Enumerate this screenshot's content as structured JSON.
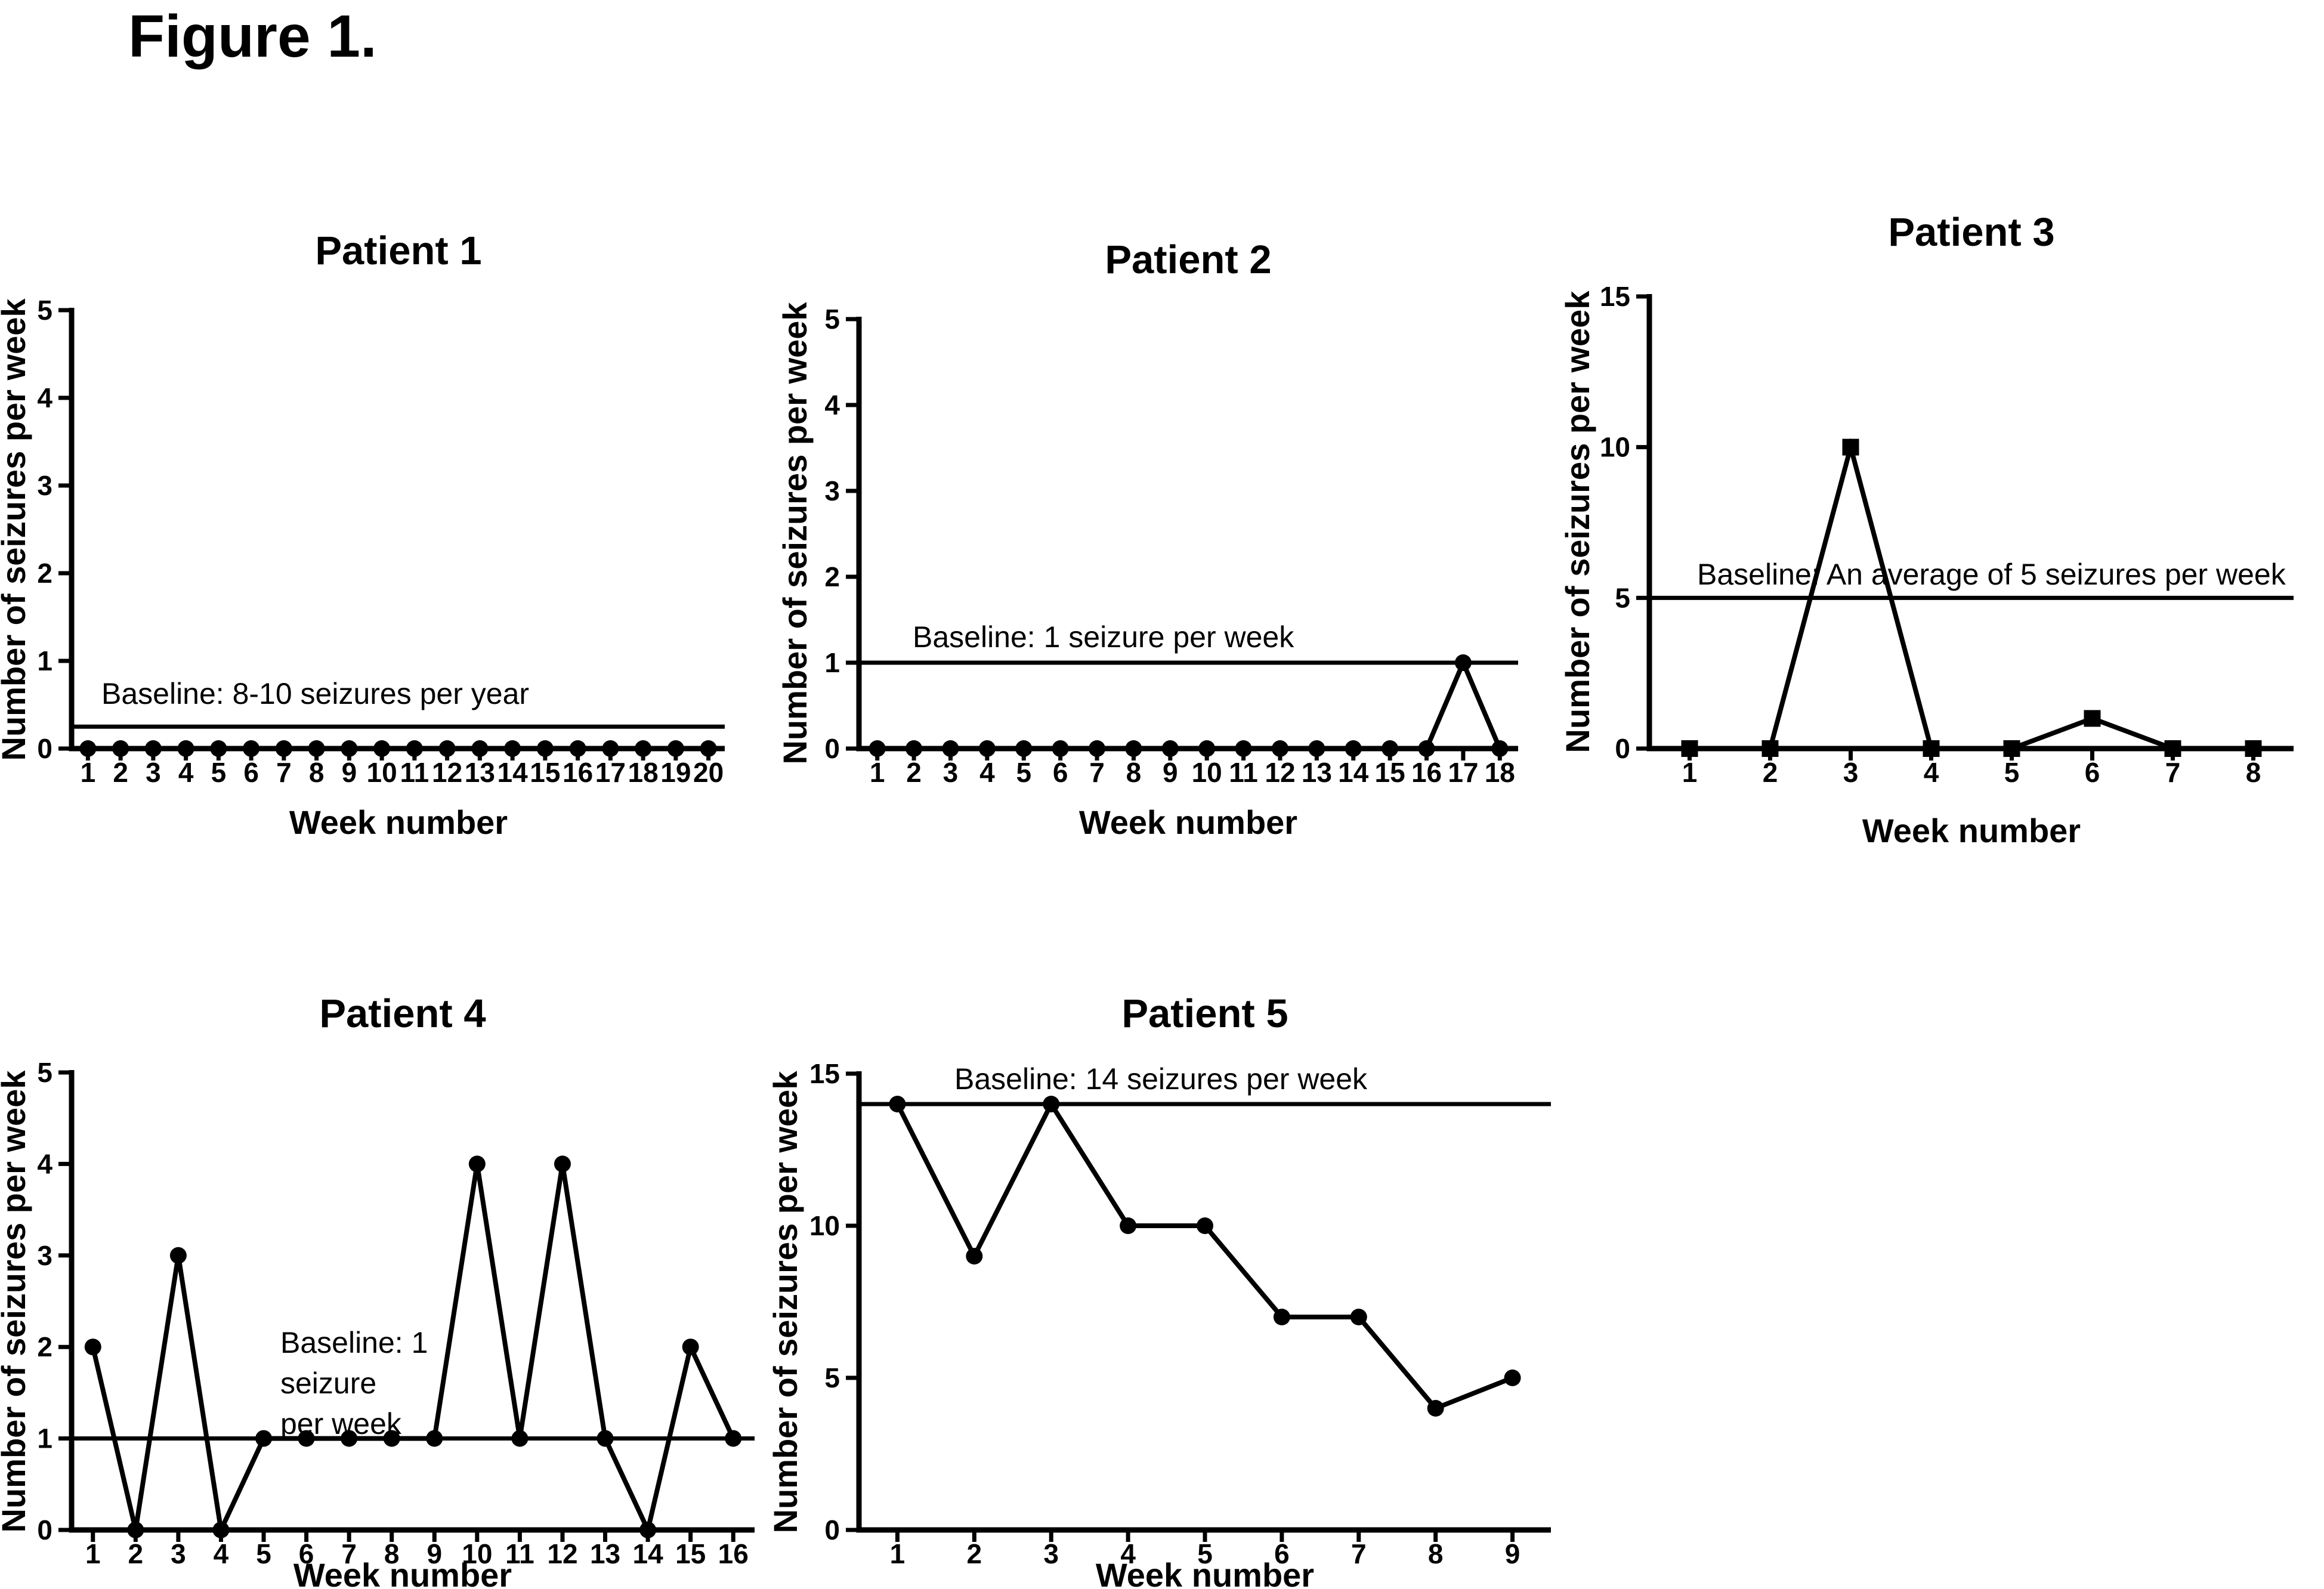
{
  "figure_title": "Figure 1.",
  "colors": {
    "ink": "#000000",
    "background": "#ffffff"
  },
  "chart_data": [
    {
      "id": "patient-1",
      "type": "line",
      "title": "Patient 1",
      "xlabel": "Week number",
      "ylabel": "Number of seizures per week",
      "x": [
        1,
        2,
        3,
        4,
        5,
        6,
        7,
        8,
        9,
        10,
        11,
        12,
        13,
        14,
        15,
        16,
        17,
        18,
        19,
        20
      ],
      "values": [
        0,
        0,
        0,
        0,
        0,
        0,
        0,
        0,
        0,
        0,
        0,
        0,
        0,
        0,
        0,
        0,
        0,
        0,
        0,
        0
      ],
      "ylim": [
        0,
        5
      ],
      "yticks": [
        0,
        1,
        2,
        3,
        4,
        5
      ],
      "marker": "circle",
      "grid": false,
      "baseline": {
        "line_at": 0.25,
        "label_lines": [
          "Baseline: 8-10 seizures per year"
        ]
      }
    },
    {
      "id": "patient-2",
      "type": "line",
      "title": "Patient 2",
      "xlabel": "Week number",
      "ylabel": "Number of seizures per week",
      "x": [
        1,
        2,
        3,
        4,
        5,
        6,
        7,
        8,
        9,
        10,
        11,
        12,
        13,
        14,
        15,
        16,
        17,
        18
      ],
      "values": [
        0,
        0,
        0,
        0,
        0,
        0,
        0,
        0,
        0,
        0,
        0,
        0,
        0,
        0,
        0,
        0,
        1,
        0
      ],
      "ylim": [
        0,
        5
      ],
      "yticks": [
        0,
        1,
        2,
        3,
        4,
        5
      ],
      "marker": "circle",
      "grid": false,
      "baseline": {
        "line_at": 1,
        "label_lines": [
          "Baseline: 1 seizure per week"
        ]
      }
    },
    {
      "id": "patient-3",
      "type": "line",
      "title": "Patient 3",
      "xlabel": "Week number",
      "ylabel": "Number of seizures per week",
      "x": [
        1,
        2,
        3,
        4,
        5,
        6,
        7,
        8
      ],
      "values": [
        0,
        0,
        10,
        0,
        0,
        1,
        0,
        0
      ],
      "ylim": [
        0,
        15
      ],
      "yticks": [
        0,
        5,
        10,
        15
      ],
      "marker": "square",
      "grid": false,
      "baseline": {
        "line_at": 5,
        "label_lines": [
          "Baseline: An average of 5 seizures per week"
        ]
      }
    },
    {
      "id": "patient-4",
      "type": "line",
      "title": "Patient 4",
      "xlabel": "Week number",
      "ylabel": "Number of seizures per week",
      "x": [
        1,
        2,
        3,
        4,
        5,
        6,
        7,
        8,
        9,
        10,
        11,
        12,
        13,
        14,
        15,
        16
      ],
      "values": [
        2,
        0,
        3,
        0,
        1,
        1,
        1,
        1,
        1,
        4,
        1,
        4,
        1,
        0,
        2,
        1
      ],
      "ylim": [
        0,
        5
      ],
      "yticks": [
        0,
        1,
        2,
        3,
        4,
        5
      ],
      "marker": "circle",
      "grid": false,
      "baseline": {
        "line_at": 1,
        "label_lines": [
          "Baseline: 1",
          "seizure",
          "per week"
        ]
      }
    },
    {
      "id": "patient-5",
      "type": "line",
      "title": "Patient 5",
      "xlabel": "Week number",
      "ylabel": "Number of seizures per week",
      "x": [
        1,
        2,
        3,
        4,
        5,
        6,
        7,
        8,
        9
      ],
      "values": [
        14,
        9,
        14,
        10,
        10,
        7,
        7,
        4,
        5
      ],
      "ylim": [
        0,
        15
      ],
      "yticks": [
        0,
        5,
        10,
        15
      ],
      "marker": "circle",
      "grid": false,
      "baseline": {
        "line_at": 14,
        "label_lines": [
          "Baseline: 14 seizures per week"
        ]
      }
    }
  ]
}
